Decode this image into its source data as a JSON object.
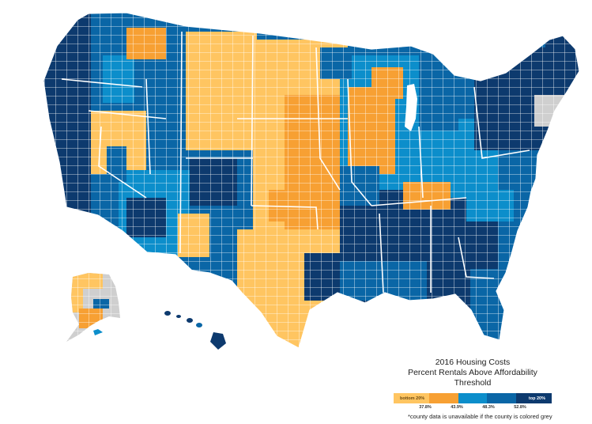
{
  "legend": {
    "title": "2016 Housing Costs",
    "subtitle": "Percent Rentals Above Affordability Threshold",
    "low_label": "bottom 20%",
    "high_label": "top 20%",
    "breaks": [
      "37.8%",
      "43.9%",
      "48.3%",
      "52.8%"
    ],
    "colors": [
      "#FFC561",
      "#F7A033",
      "#0C8ECB",
      "#0A66A6",
      "#0D3A6E"
    ]
  },
  "note": "*county data is unavailable if the county is colored grey",
  "map_colors": {
    "no_data": "#CFCFCF",
    "border": "#FFFFFF"
  }
}
